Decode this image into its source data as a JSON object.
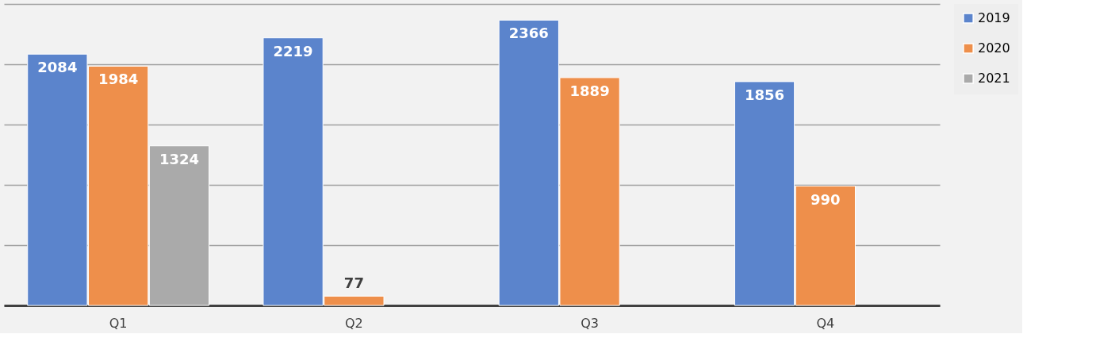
{
  "chart_data": {
    "type": "bar",
    "categories": [
      "Q1",
      "Q2",
      "Q3",
      "Q4"
    ],
    "series": [
      {
        "name": "2019",
        "color": "#5b84cc",
        "values": [
          2084,
          2219,
          2366,
          1856
        ]
      },
      {
        "name": "2020",
        "color": "#ee8f4b",
        "values": [
          1984,
          77,
          1889,
          990
        ]
      },
      {
        "name": "2021",
        "color": "#aaaaaa",
        "values": [
          1324,
          null,
          null,
          null
        ]
      }
    ],
    "ylim": [
      0,
      2500
    ],
    "yticks": [
      {
        "value": 0,
        "label": null
      },
      {
        "value": 500,
        "label": null
      },
      {
        "value": 1000,
        "label": null
      },
      {
        "value": 1500,
        "label": null
      },
      {
        "value": 2000,
        "label": null
      },
      {
        "value": 2500,
        "label": null
      }
    ],
    "grid": "y",
    "legend": "right",
    "data_labels": true
  }
}
